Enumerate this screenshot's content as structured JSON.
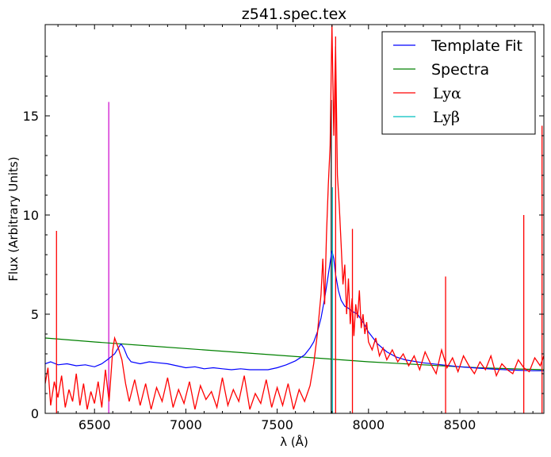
{
  "chart_data": {
    "type": "line",
    "title": "z541.spec.tex",
    "xlabel": "λ (Å)",
    "ylabel": "Flux (Arbitrary Units)",
    "xlim": [
      6230,
      8960
    ],
    "ylim": [
      0,
      19.6
    ],
    "xticks": [
      6500,
      7000,
      7500,
      8000,
      8500
    ],
    "yticks": [
      0,
      5,
      10,
      15
    ],
    "grid": false,
    "legend_position": "top-right",
    "series": [
      {
        "name": "Template Fit",
        "color": "#0000ff",
        "x": [
          6230,
          6260,
          6300,
          6350,
          6400,
          6450,
          6500,
          6540,
          6570,
          6590,
          6610,
          6630,
          6645,
          6660,
          6680,
          6700,
          6750,
          6800,
          6850,
          6900,
          6950,
          7000,
          7050,
          7100,
          7150,
          7200,
          7250,
          7300,
          7350,
          7400,
          7450,
          7500,
          7550,
          7600,
          7650,
          7680,
          7700,
          7720,
          7740,
          7760,
          7775,
          7790,
          7800,
          7810,
          7820,
          7835,
          7850,
          7870,
          7890,
          7910,
          7940,
          7970,
          8000,
          8050,
          8100,
          8150,
          8200,
          8300,
          8400,
          8500,
          8600,
          8700,
          8800,
          8900,
          8960
        ],
        "y": [
          2.5,
          2.6,
          2.45,
          2.5,
          2.4,
          2.45,
          2.35,
          2.5,
          2.7,
          2.85,
          3.0,
          3.3,
          3.5,
          3.3,
          2.85,
          2.6,
          2.5,
          2.6,
          2.55,
          2.5,
          2.4,
          2.3,
          2.35,
          2.25,
          2.3,
          2.25,
          2.2,
          2.25,
          2.2,
          2.2,
          2.2,
          2.3,
          2.45,
          2.65,
          2.95,
          3.3,
          3.6,
          4.1,
          4.8,
          5.8,
          6.7,
          7.6,
          8.2,
          7.8,
          7.0,
          6.2,
          5.7,
          5.4,
          5.3,
          5.15,
          5.0,
          4.6,
          4.1,
          3.5,
          3.1,
          2.85,
          2.7,
          2.55,
          2.45,
          2.35,
          2.28,
          2.22,
          2.18,
          2.15,
          2.15
        ]
      },
      {
        "name": "Spectra",
        "color": "#008000",
        "x": [
          6230,
          6500,
          6800,
          7100,
          7400,
          7700,
          8000,
          8300,
          8600,
          8960
        ],
        "y": [
          3.8,
          3.6,
          3.4,
          3.2,
          3.0,
          2.8,
          2.6,
          2.45,
          2.3,
          2.2
        ]
      },
      {
        "name": "Lyα",
        "color": "#ff0000",
        "x": [
          6230,
          6245,
          6260,
          6280,
          6300,
          6320,
          6340,
          6360,
          6380,
          6400,
          6420,
          6440,
          6460,
          6480,
          6500,
          6520,
          6540,
          6560,
          6580,
          6600,
          6610,
          6630,
          6650,
          6670,
          6690,
          6720,
          6750,
          6780,
          6810,
          6840,
          6870,
          6900,
          6930,
          6960,
          6990,
          7020,
          7050,
          7080,
          7110,
          7140,
          7170,
          7200,
          7230,
          7260,
          7290,
          7320,
          7350,
          7380,
          7410,
          7440,
          7470,
          7500,
          7530,
          7560,
          7590,
          7620,
          7650,
          7680,
          7700,
          7720,
          7740,
          7750,
          7760,
          7770,
          7780,
          7790,
          7800,
          7810,
          7820,
          7830,
          7840,
          7850,
          7860,
          7870,
          7880,
          7890,
          7900,
          7910,
          7920,
          7930,
          7940,
          7950,
          7960,
          7970,
          7980,
          7990,
          8000,
          8020,
          8040,
          8060,
          8080,
          8100,
          8130,
          8160,
          8190,
          8220,
          8250,
          8280,
          8310,
          8340,
          8370,
          8400,
          8430,
          8460,
          8490,
          8520,
          8550,
          8580,
          8610,
          8640,
          8670,
          8700,
          8730,
          8760,
          8790,
          8820,
          8850,
          8880,
          8910,
          8940,
          8960
        ],
        "y": [
          1.5,
          2.3,
          0.4,
          1.6,
          0.8,
          1.9,
          0.3,
          1.2,
          0.6,
          2.0,
          0.4,
          1.5,
          0.2,
          1.1,
          0.5,
          1.6,
          0.3,
          2.2,
          0.6,
          3.2,
          3.8,
          3.3,
          2.7,
          1.5,
          0.6,
          1.7,
          0.4,
          1.5,
          0.2,
          1.3,
          0.6,
          1.8,
          0.3,
          1.2,
          0.5,
          1.6,
          0.2,
          1.4,
          0.7,
          1.1,
          0.3,
          1.8,
          0.4,
          1.2,
          0.6,
          1.9,
          0.2,
          1.0,
          0.5,
          1.7,
          0.3,
          1.3,
          0.4,
          1.5,
          0.2,
          1.2,
          0.6,
          1.4,
          2.5,
          4.0,
          6.0,
          7.8,
          5.5,
          9.0,
          11.5,
          13.5,
          19.6,
          14.0,
          18.5,
          12.0,
          10.5,
          8.5,
          6.5,
          7.5,
          5.0,
          6.8,
          4.5,
          5.8,
          3.9,
          5.5,
          4.8,
          6.2,
          4.3,
          5.0,
          4.0,
          4.6,
          3.6,
          3.2,
          3.8,
          2.9,
          3.3,
          2.7,
          3.2,
          2.6,
          3.0,
          2.4,
          2.9,
          2.2,
          3.1,
          2.5,
          2.0,
          3.2,
          2.3,
          2.8,
          2.1,
          2.9,
          2.4,
          2.0,
          2.6,
          2.2,
          2.9,
          1.9,
          2.5,
          2.2,
          2.0,
          2.7,
          2.3,
          2.1,
          2.8,
          2.4,
          2.9
        ]
      },
      {
        "name": "Lyβ",
        "color": "#00bfbf",
        "x": [
          7803,
          7803
        ],
        "y": [
          0,
          11.4
        ]
      }
    ],
    "spikes": [
      {
        "color": "#ff0000",
        "x": 6292,
        "y": 9.2
      },
      {
        "color": "#ff0000",
        "x": 7912,
        "y": 9.3
      },
      {
        "color": "#ff0000",
        "x": 8422,
        "y": 6.9
      },
      {
        "color": "#ff0000",
        "x": 8850,
        "y": 10.0
      },
      {
        "color": "#ff0000",
        "x": 8950,
        "y": 14.5
      },
      {
        "color": "#ff0000",
        "x": 7820,
        "y": 19.0
      }
    ],
    "vertical_lines": [
      {
        "color": "#cc00cc",
        "x": 6578,
        "y0": 0,
        "y1": 15.7
      },
      {
        "color": "#000000",
        "x": 7796,
        "y0": 0,
        "y1": 15.8
      }
    ]
  }
}
